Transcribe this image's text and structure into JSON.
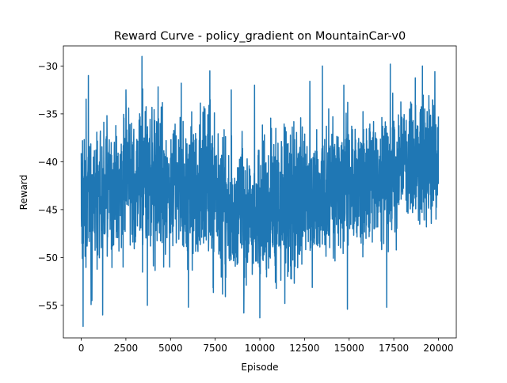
{
  "chart_data": {
    "type": "line",
    "title": "Reward Curve - policy_gradient on MountainCar-v0",
    "xlabel": "Episode",
    "ylabel": "Reward",
    "xlim": [
      -1000,
      21000
    ],
    "ylim": [
      -58.4,
      -27.9
    ],
    "xticks": [
      0,
      2500,
      5000,
      7500,
      10000,
      12500,
      15000,
      17500,
      20000
    ],
    "xtick_labels": [
      "0",
      "2500",
      "5000",
      "7500",
      "10000",
      "12500",
      "15000",
      "17500",
      "20000"
    ],
    "yticks": [
      -55,
      -50,
      -45,
      -40,
      -35,
      -30
    ],
    "ytick_labels": [
      "−55",
      "−50",
      "−45",
      "−40",
      "−35",
      "−30"
    ],
    "grid": false,
    "legend": "none",
    "line_color": "#1f77b4",
    "series": [
      {
        "x": [
          0,
          1000,
          2000,
          3000,
          4000,
          5000,
          6000,
          7000,
          8000,
          9000,
          10000,
          11000,
          12000,
          13000,
          14000,
          15000,
          16000,
          17000,
          18000,
          19000,
          20000
        ],
        "upper": [
          -35.0,
          -33.5,
          -34.5,
          -32.5,
          -32.0,
          -33.0,
          -33.0,
          -33.5,
          -35.5,
          -37.0,
          -37.0,
          -35.5,
          -35.5,
          -35.0,
          -34.5,
          -34.0,
          -33.5,
          -34.0,
          -32.5,
          -32.5,
          -32.0
        ],
        "lower": [
          -53.0,
          -53.0,
          -51.5,
          -51.5,
          -51.0,
          -51.5,
          -52.0,
          -52.0,
          -53.5,
          -54.0,
          -54.0,
          -53.5,
          -53.0,
          -52.5,
          -52.0,
          -51.0,
          -50.5,
          -49.5,
          -48.0,
          -47.5,
          -47.5
        ],
        "peaks": [
          [
            400,
            -31.0
          ],
          [
            2500,
            -32.5
          ],
          [
            3400,
            -29.0
          ],
          [
            5600,
            -31.8
          ],
          [
            7200,
            -30.5
          ],
          [
            8400,
            -32.5
          ],
          [
            9700,
            -32.0
          ],
          [
            12800,
            -31.6
          ],
          [
            13500,
            -30.0
          ],
          [
            14700,
            -32.0
          ],
          [
            17300,
            -29.8
          ],
          [
            19100,
            -30.0
          ],
          [
            19800,
            -30.6
          ]
        ],
        "troughs": [
          [
            100,
            -57.2
          ],
          [
            600,
            -54.5
          ],
          [
            1200,
            -56.0
          ],
          [
            3700,
            -55.0
          ],
          [
            6000,
            -55.2
          ],
          [
            9100,
            -55.8
          ],
          [
            10000,
            -56.3
          ],
          [
            11400,
            -54.8
          ],
          [
            14900,
            -55.4
          ],
          [
            17100,
            -55.2
          ]
        ]
      }
    ]
  }
}
